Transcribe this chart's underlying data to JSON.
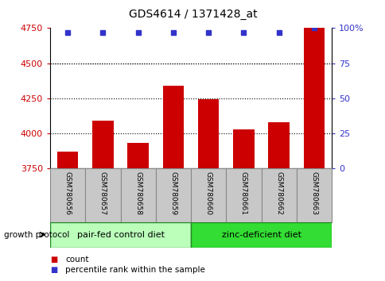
{
  "title": "GDS4614 / 1371428_at",
  "samples": [
    "GSM780656",
    "GSM780657",
    "GSM780658",
    "GSM780659",
    "GSM780660",
    "GSM780661",
    "GSM780662",
    "GSM780663"
  ],
  "counts": [
    3870,
    4090,
    3935,
    4340,
    4245,
    4030,
    4080,
    4750
  ],
  "percentile_ranks": [
    97,
    97,
    97,
    97,
    97,
    97,
    97,
    100
  ],
  "bar_color": "#cc0000",
  "dot_color": "#3333cc",
  "ylim_left": [
    3750,
    4750
  ],
  "ylim_right": [
    0,
    100
  ],
  "yticks_left": [
    3750,
    4000,
    4250,
    4500,
    4750
  ],
  "yticks_right": [
    0,
    25,
    50,
    75,
    100
  ],
  "grid_values": [
    4000,
    4250,
    4500
  ],
  "groups": [
    {
      "label": "pair-fed control diet",
      "start": 0,
      "end": 3,
      "color": "#bbffbb"
    },
    {
      "label": "zinc-deficient diet",
      "start": 4,
      "end": 7,
      "color": "#33dd33"
    }
  ],
  "group_label": "growth protocol",
  "legend_count_color": "#cc0000",
  "legend_dot_color": "#3333cc",
  "tick_label_bg": "#c8c8c8",
  "tick_label_edgecolor": "#888888"
}
